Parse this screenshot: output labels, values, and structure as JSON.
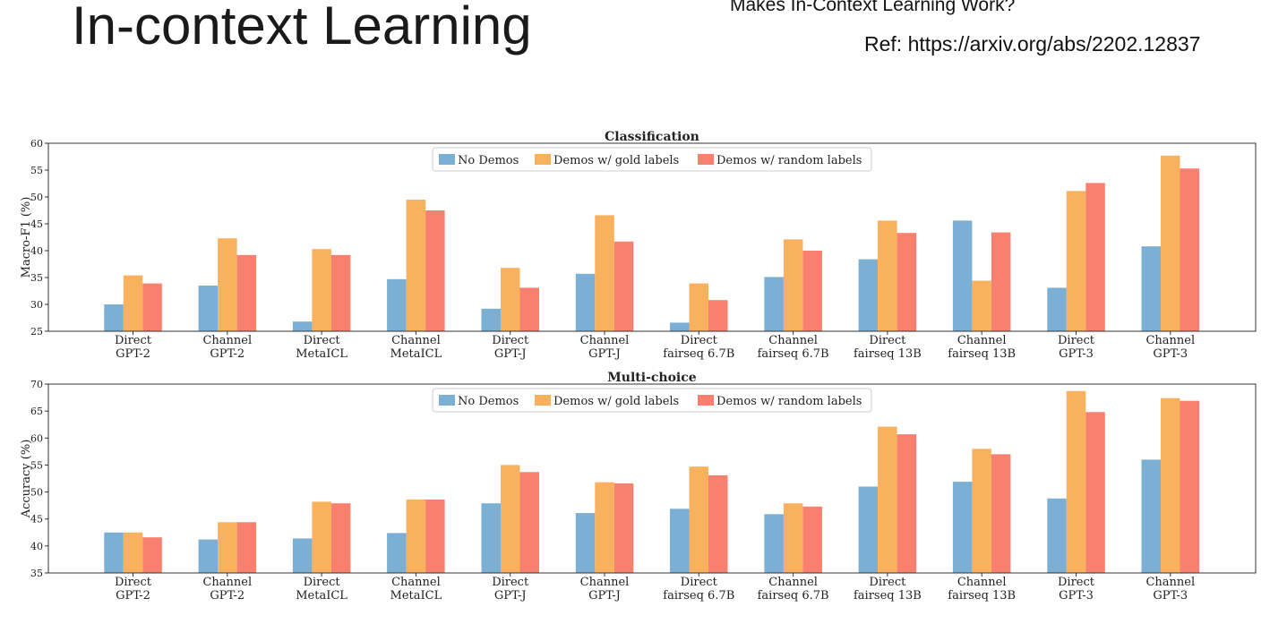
{
  "slide": {
    "title": "In-context Learning",
    "paper_title_partial": "Makes In-Context Learning Work?",
    "reference": "Ref: https://arxiv.org/abs/2202.12837"
  },
  "colors": {
    "No Demos": "#7bafd4",
    "Demos w/ gold labels": "#f9b15d",
    "Demos w/ random labels": "#f8806f"
  },
  "chart_data": [
    {
      "type": "bar",
      "title": "Classification",
      "ylabel": "Macro-F1 (%)",
      "ylim": [
        25,
        60
      ],
      "yticks": [
        25,
        30,
        35,
        40,
        45,
        50,
        55,
        60
      ],
      "legend_position": "top-center",
      "categories": [
        [
          "Direct",
          "GPT-2"
        ],
        [
          "Channel",
          "GPT-2"
        ],
        [
          "Direct",
          "MetaICL"
        ],
        [
          "Channel",
          "MetaICL"
        ],
        [
          "Direct",
          "GPT-J"
        ],
        [
          "Channel",
          "GPT-J"
        ],
        [
          "Direct",
          "fairseq 6.7B"
        ],
        [
          "Channel",
          "fairseq 6.7B"
        ],
        [
          "Direct",
          "fairseq 13B"
        ],
        [
          "Channel",
          "fairseq 13B"
        ],
        [
          "Direct",
          "GPT-3"
        ],
        [
          "Channel",
          "GPT-3"
        ]
      ],
      "series": [
        {
          "name": "No Demos",
          "values": [
            30.0,
            33.5,
            26.8,
            34.7,
            29.2,
            35.7,
            26.6,
            35.1,
            38.4,
            45.6,
            33.1,
            40.8
          ]
        },
        {
          "name": "Demos w/ gold labels",
          "values": [
            35.4,
            42.3,
            40.3,
            49.5,
            36.8,
            46.6,
            33.9,
            42.1,
            45.6,
            34.4,
            51.1,
            57.7
          ]
        },
        {
          "name": "Demos w/ random labels",
          "values": [
            33.9,
            39.2,
            39.2,
            47.5,
            33.1,
            41.7,
            30.8,
            40.0,
            43.3,
            43.4,
            52.6,
            55.3
          ]
        }
      ]
    },
    {
      "type": "bar",
      "title": "Multi-choice",
      "ylabel": "Accuracy (%)",
      "ylim": [
        35,
        70
      ],
      "yticks": [
        35,
        40,
        45,
        50,
        55,
        60,
        65,
        70
      ],
      "legend_position": "top-center",
      "categories": [
        [
          "Direct",
          "GPT-2"
        ],
        [
          "Channel",
          "GPT-2"
        ],
        [
          "Direct",
          "MetaICL"
        ],
        [
          "Channel",
          "MetaICL"
        ],
        [
          "Direct",
          "GPT-J"
        ],
        [
          "Channel",
          "GPT-J"
        ],
        [
          "Direct",
          "fairseq 6.7B"
        ],
        [
          "Channel",
          "fairseq 6.7B"
        ],
        [
          "Direct",
          "fairseq 13B"
        ],
        [
          "Channel",
          "fairseq 13B"
        ],
        [
          "Direct",
          "GPT-3"
        ],
        [
          "Channel",
          "GPT-3"
        ]
      ],
      "series": [
        {
          "name": "No Demos",
          "values": [
            42.5,
            41.2,
            41.4,
            42.4,
            47.9,
            46.1,
            46.9,
            45.9,
            51.0,
            51.9,
            48.8,
            56.0
          ]
        },
        {
          "name": "Demos w/ gold labels",
          "values": [
            42.5,
            44.4,
            48.2,
            48.6,
            55.0,
            51.8,
            54.7,
            47.9,
            62.1,
            58.0,
            68.7,
            67.4
          ]
        },
        {
          "name": "Demos w/ random labels",
          "values": [
            41.6,
            44.4,
            47.9,
            48.6,
            53.7,
            51.6,
            53.1,
            47.3,
            60.7,
            57.0,
            64.8,
            66.9
          ]
        }
      ]
    }
  ]
}
